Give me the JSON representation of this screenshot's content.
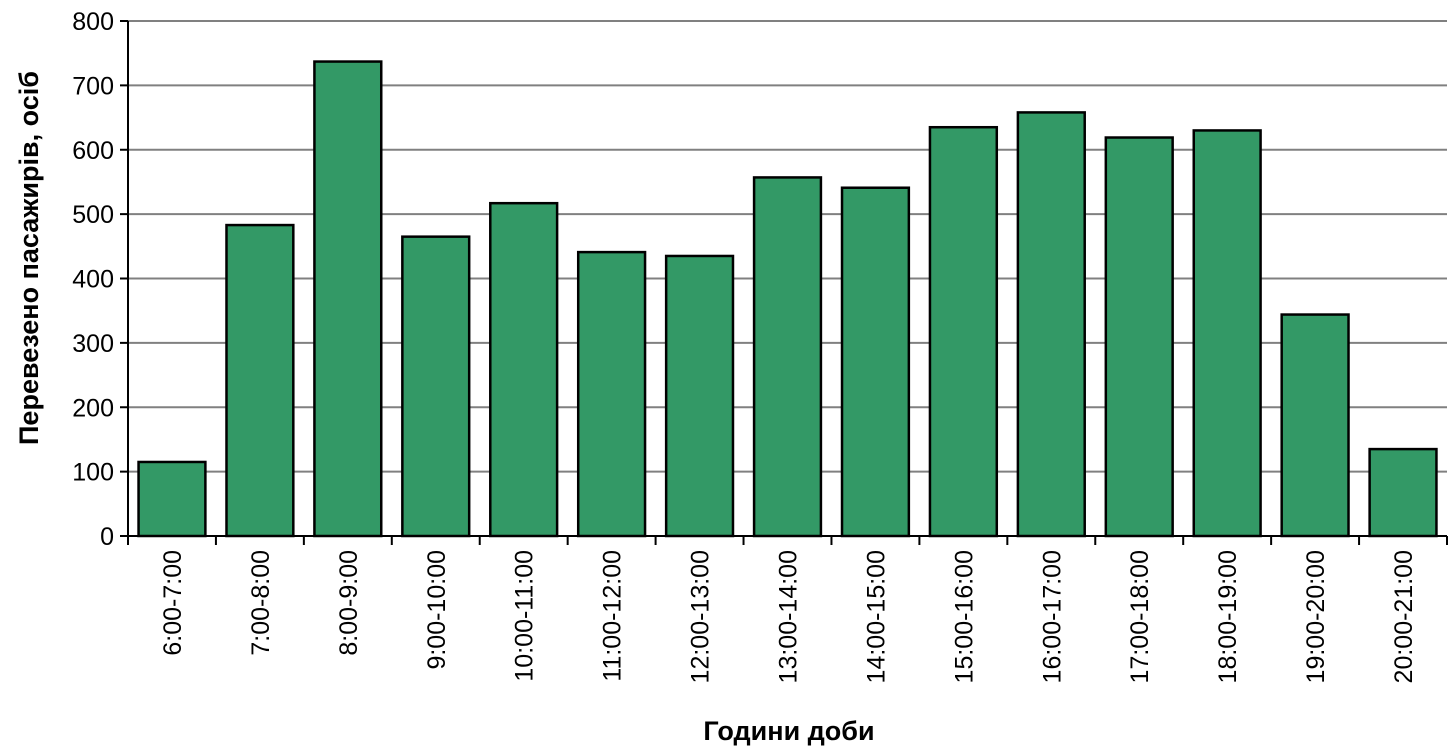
{
  "chart_data": {
    "type": "bar",
    "title": "",
    "xlabel": "Години доби",
    "ylabel": "Перевезено пасажирів, осіб",
    "categories": [
      "6:00-7:00",
      "7:00-8:00",
      "8:00-9:00",
      "9:00-10:00",
      "10:00-11:00",
      "11:00-12:00",
      "12:00-13:00",
      "13:00-14:00",
      "14:00-15:00",
      "15:00-16:00",
      "16:00-17:00",
      "17:00-18:00",
      "18:00-19:00",
      "19:00-20:00",
      "20:00-21:00"
    ],
    "values": [
      115,
      483,
      737,
      465,
      517,
      441,
      435,
      557,
      541,
      635,
      658,
      619,
      630,
      344,
      135
    ],
    "ylim": [
      0,
      800
    ],
    "yticks": [
      "0",
      "100",
      "200",
      "300",
      "400",
      "500",
      "600",
      "700",
      "800"
    ],
    "grid": true,
    "legend": "none",
    "bar_color": "#339966",
    "bar_edge_color": "#000000",
    "grid_color": "#808080"
  }
}
